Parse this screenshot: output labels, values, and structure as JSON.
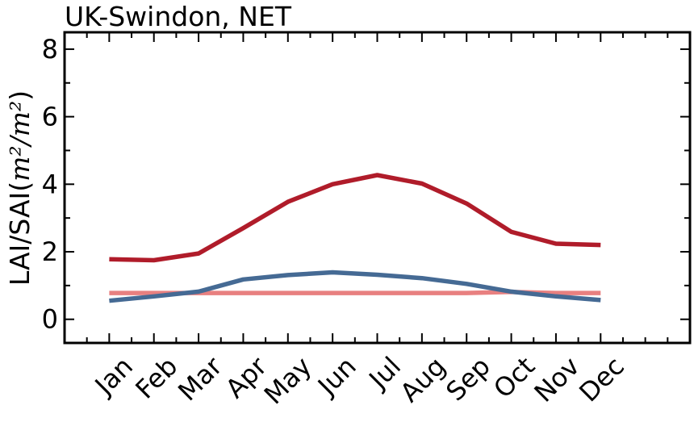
{
  "chart_data": {
    "type": "line",
    "title": "UK-Swindon, NET",
    "ylabel_text": "LAI/SAI(",
    "ylabel_math": "m²/m²",
    "ylabel_close": ")",
    "categories": [
      "Jan",
      "Feb",
      "Mar",
      "Apr",
      "May",
      "Jun",
      "Jul",
      "Aug",
      "Sep",
      "Oct",
      "Nov",
      "Dec"
    ],
    "ylim": [
      -0.7,
      8.5
    ],
    "xlim": [
      -1,
      13
    ],
    "yticks": [
      0,
      2,
      4,
      6,
      8
    ],
    "grid": false,
    "legend": "none",
    "series": [
      {
        "values": [
          1.78,
          1.75,
          1.95,
          2.7,
          3.48,
          4.0,
          4.27,
          4.02,
          3.43,
          2.59,
          2.24,
          2.2
        ],
        "color": "#b01c2a"
      },
      {
        "values": [
          0.78,
          0.78,
          0.78,
          0.78,
          0.78,
          0.78,
          0.78,
          0.78,
          0.78,
          0.81,
          0.78,
          0.78
        ],
        "color": "#e88080"
      },
      {
        "values": [
          0.55,
          0.68,
          0.82,
          1.18,
          1.31,
          1.39,
          1.32,
          1.22,
          1.05,
          0.82,
          0.68,
          0.57
        ],
        "color": "#456a94"
      }
    ]
  }
}
